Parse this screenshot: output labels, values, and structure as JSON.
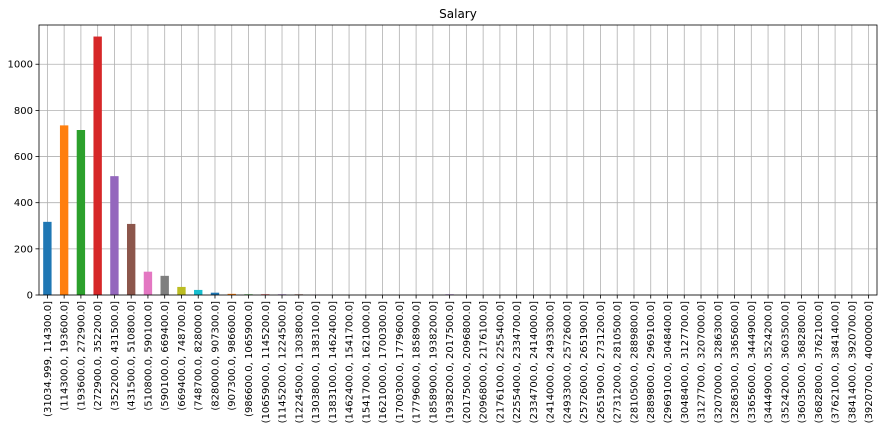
{
  "chart_data": {
    "type": "bar",
    "title": "Salary",
    "xlabel": "",
    "ylabel": "",
    "ylim": [
      0,
      1170
    ],
    "yticks": [
      0,
      200,
      400,
      600,
      800,
      1000
    ],
    "grid": true,
    "legend": "none",
    "categories": [
      "(31034.999, 114300.0]",
      "(114300.0, 193600.0]",
      "(193600.0, 272900.0]",
      "(272900.0, 352200.0]",
      "(352200.0, 431500.0]",
      "(431500.0, 510800.0]",
      "(510800.0, 590100.0]",
      "(590100.0, 669400.0]",
      "(669400.0, 748700.0]",
      "(748700.0, 828000.0]",
      "(828000.0, 907300.0]",
      "(907300.0, 986600.0]",
      "(986600.0, 1065900.0]",
      "(1065900.0, 1145200.0]",
      "(1145200.0, 1224500.0]",
      "(1224500.0, 1303800.0]",
      "(1303800.0, 1383100.0]",
      "(1383100.0, 1462400.0]",
      "(1462400.0, 1541700.0]",
      "(1541700.0, 1621000.0]",
      "(1621000.0, 1700300.0]",
      "(1700300.0, 1779600.0]",
      "(1779600.0, 1858900.0]",
      "(1858900.0, 1938200.0]",
      "(1938200.0, 2017500.0]",
      "(2017500.0, 2096800.0]",
      "(2096800.0, 2176100.0]",
      "(2176100.0, 2255400.0]",
      "(2255400.0, 2334700.0]",
      "(2334700.0, 2414000.0]",
      "(2414000.0, 2493300.0]",
      "(2493300.0, 2572600.0]",
      "(2572600.0, 2651900.0]",
      "(2651900.0, 2731200.0]",
      "(2731200.0, 2810500.0]",
      "(2810500.0, 2889800.0]",
      "(2889800.0, 2969100.0]",
      "(2969100.0, 3048400.0]",
      "(3048400.0, 3127700.0]",
      "(3127700.0, 3207000.0]",
      "(3207000.0, 3286300.0]",
      "(3286300.0, 3365600.0]",
      "(3365600.0, 3444900.0]",
      "(3444900.0, 3524200.0]",
      "(3524200.0, 3603500.0]",
      "(3603500.0, 3682800.0]",
      "(3682800.0, 3762100.0]",
      "(3762100.0, 3841400.0]",
      "(3841400.0, 3920700.0]",
      "(3920700.0, 4000000.0]"
    ],
    "values": [
      317,
      735,
      715,
      1120,
      515,
      308,
      101,
      83,
      35,
      22,
      10,
      5,
      3,
      3,
      3,
      3,
      1,
      0,
      0,
      0,
      0,
      0,
      0,
      0,
      3,
      0,
      0,
      0,
      0,
      0,
      0,
      0,
      0,
      0,
      0,
      0,
      0,
      0,
      0,
      0,
      0,
      0,
      0,
      0,
      1,
      0,
      0,
      0,
      0,
      0
    ],
    "colors": [
      "#1f77b4",
      "#ff7f0e",
      "#2ca02c",
      "#d62728",
      "#9467bd",
      "#8c564b",
      "#e377c2",
      "#7f7f7f",
      "#bcbd22",
      "#17becf"
    ]
  }
}
